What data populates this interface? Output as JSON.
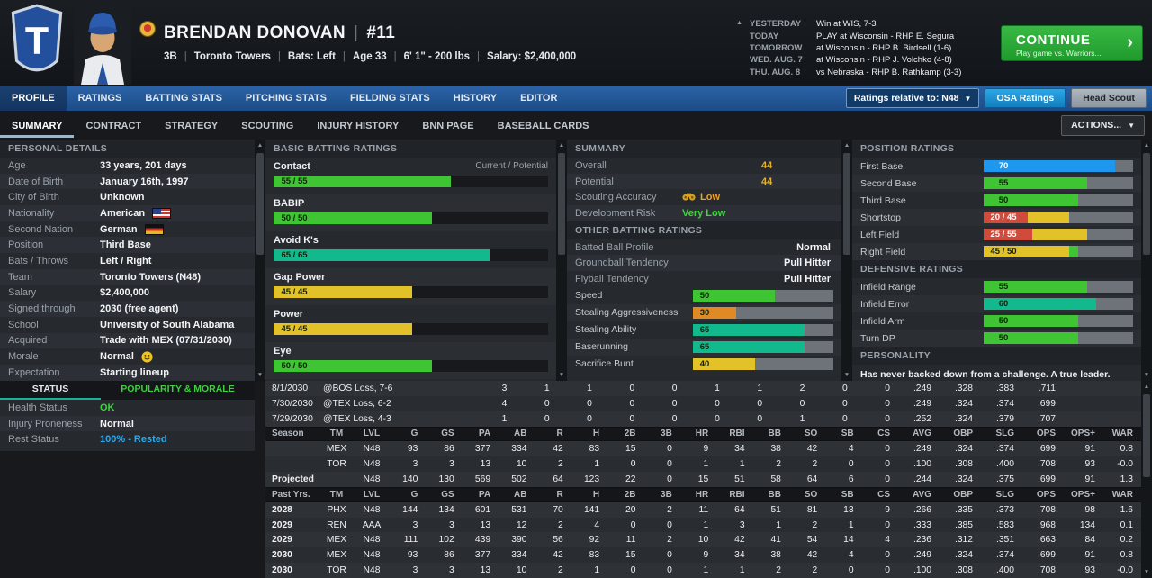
{
  "colors": {
    "red": "#d14b3c",
    "orange": "#e08a26",
    "yellow": "#e2c228",
    "green": "#3fc433",
    "teal": "#12b98c",
    "blue": "#1e97ef",
    "gold": "#e2b431"
  },
  "header": {
    "player_name": "BRENDAN DONOVAN",
    "jersey_number": "#11",
    "detail_segments": [
      "3B",
      "Toronto Towers",
      "Bats: Left",
      "Age 33",
      "6' 1\" - 200 lbs",
      "Salary: $2,400,000"
    ],
    "schedule": [
      {
        "label": "YESTERDAY",
        "value": "Win at WIS, 7-3"
      },
      {
        "label": "TODAY",
        "value": "PLAY at Wisconsin - RHP E. Segura"
      },
      {
        "label": "TOMORROW",
        "value": "at Wisconsin - RHP B. Birdsell (1-6)"
      },
      {
        "label": "WED. AUG. 7",
        "value": "at Wisconsin - RHP J. Volchko (4-8)"
      },
      {
        "label": "THU. AUG. 8",
        "value": "vs Nebraska - RHP B. Rathkamp (3-3)"
      }
    ],
    "continue_label": "CONTINUE",
    "continue_sub": "Play game vs. Warriors..."
  },
  "nav": {
    "tabs": [
      "PROFILE",
      "RATINGS",
      "BATTING STATS",
      "PITCHING STATS",
      "FIELDING STATS",
      "HISTORY",
      "EDITOR"
    ],
    "active_tab": "PROFILE",
    "ratings_relative": "Ratings relative to: N48",
    "osa_button": "OSA Ratings",
    "head_scout_button": "Head Scout"
  },
  "subnav": {
    "tabs": [
      "SUMMARY",
      "CONTRACT",
      "STRATEGY",
      "SCOUTING",
      "INJURY HISTORY",
      "BNN PAGE",
      "BASEBALL CARDS"
    ],
    "active_tab": "SUMMARY",
    "actions_button": "ACTIONS..."
  },
  "personal": {
    "title": "PERSONAL DETAILS",
    "rows": [
      {
        "label": "Age",
        "value": "33 years, 201 days"
      },
      {
        "label": "Date of Birth",
        "value": "January 16th, 1997"
      },
      {
        "label": "City of Birth",
        "value": "Unknown"
      },
      {
        "label": "Nationality",
        "value": "American",
        "flag": "us"
      },
      {
        "label": "Second Nation",
        "value": "German",
        "flag": "de"
      },
      {
        "label": "Position",
        "value": "Third Base"
      },
      {
        "label": "Bats / Throws",
        "value": "Left / Right"
      },
      {
        "label": "Team",
        "value": "Toronto Towers (N48)"
      },
      {
        "label": "Salary",
        "value": "$2,400,000"
      },
      {
        "label": "Signed through",
        "value": "2030 (free agent)"
      },
      {
        "label": "School",
        "value": "University of South Alabama"
      },
      {
        "label": "Acquired",
        "value": "Trade with MEX (07/31/2030)"
      },
      {
        "label": "Morale",
        "value": "Normal",
        "icon": "smiley"
      },
      {
        "label": "Expectation",
        "value": "Starting lineup"
      }
    ]
  },
  "status": {
    "tabs": [
      "STATUS",
      "POPULARITY & MORALE"
    ],
    "active_tab": "STATUS",
    "rows": [
      {
        "label": "Health Status",
        "value": "OK",
        "color": "#3ed43e"
      },
      {
        "label": "Injury Proneness",
        "value": "Normal"
      },
      {
        "label": "Rest Status",
        "value": "100% - Rested",
        "color": "#2fa8e8"
      }
    ]
  },
  "batting": {
    "title": "BASIC BATTING RATINGS",
    "scale_note": "Current / Potential",
    "ratings": [
      {
        "label": "Contact",
        "display": "55 / 55",
        "current": 55,
        "potential": 55,
        "color": "#3fc433"
      },
      {
        "label": "BABIP",
        "display": "50 / 50",
        "current": 50,
        "potential": 50,
        "color": "#3fc433"
      },
      {
        "label": "Avoid K's",
        "display": "65 / 65",
        "current": 65,
        "potential": 65,
        "color": "#12b98c"
      },
      {
        "label": "Gap Power",
        "display": "45 / 45",
        "current": 45,
        "potential": 45,
        "color": "#e2c228"
      },
      {
        "label": "Power",
        "display": "45 / 45",
        "current": 45,
        "potential": 45,
        "color": "#e2c228"
      },
      {
        "label": "Eye",
        "display": "50 / 50",
        "current": 50,
        "potential": 50,
        "color": "#3fc433"
      }
    ]
  },
  "summary": {
    "title": "SUMMARY",
    "rows": [
      {
        "label": "Overall",
        "value": "44",
        "variant": "num",
        "color": "#e2b431"
      },
      {
        "label": "Potential",
        "value": "44",
        "variant": "num",
        "color": "#e2b431"
      },
      {
        "label": "Scouting Accuracy",
        "value": "Low",
        "variant": "mid",
        "color": "#e8a22f",
        "icon": "binoculars"
      },
      {
        "label": "Development Risk",
        "value": "Very Low",
        "variant": "mid",
        "color": "#41d43f"
      }
    ],
    "other_title": "OTHER BATTING RATINGS",
    "profile_rows": [
      {
        "label": "Batted Ball Profile",
        "value": "Normal"
      },
      {
        "label": "Groundball Tendency",
        "value": "Pull Hitter"
      },
      {
        "label": "Flyball Tendency",
        "value": "Pull Hitter"
      }
    ],
    "run_ratings": [
      {
        "label": "Speed",
        "display": "50",
        "current": 50,
        "color": "#3fc433"
      },
      {
        "label": "Stealing Aggressiveness",
        "display": "30",
        "current": 30,
        "color": "#e08a26"
      },
      {
        "label": "Stealing Ability",
        "display": "65",
        "current": 65,
        "color": "#12b98c"
      },
      {
        "label": "Baserunning",
        "display": "65",
        "current": 65,
        "color": "#12b98c"
      },
      {
        "label": "Sacrifice Bunt",
        "display": "40",
        "current": 40,
        "color": "#e2c228"
      }
    ]
  },
  "positions": {
    "title": "POSITION RATINGS",
    "ratings": [
      {
        "label": "First Base",
        "display": "70",
        "current": 70,
        "color": "#1e97ef"
      },
      {
        "label": "Second Base",
        "display": "55",
        "current": 55,
        "color": "#3fc433"
      },
      {
        "label": "Third Base",
        "display": "50",
        "current": 50,
        "color": "#3fc433"
      },
      {
        "label": "Shortstop",
        "display": "20 / 45",
        "current": 20,
        "potential": 45,
        "color": "#d14b3c",
        "potential_color": "#e2c228"
      },
      {
        "label": "Left Field",
        "display": "25 / 55",
        "current": 25,
        "potential": 55,
        "color": "#d14b3c",
        "potential_color": "#e2c228"
      },
      {
        "label": "Right Field",
        "display": "45 / 50",
        "current": 45,
        "potential": 50,
        "color": "#e2c228",
        "potential_color": "#3fc433"
      }
    ],
    "defense_title": "DEFENSIVE RATINGS",
    "defense": [
      {
        "label": "Infield Range",
        "display": "55",
        "current": 55,
        "color": "#3fc433"
      },
      {
        "label": "Infield Error",
        "display": "60",
        "current": 60,
        "color": "#12b98c"
      },
      {
        "label": "Infield Arm",
        "display": "50",
        "current": 50,
        "color": "#3fc433"
      },
      {
        "label": "Turn DP",
        "display": "50",
        "current": 50,
        "color": "#3fc433"
      }
    ],
    "personality_title": "PERSONALITY",
    "personality_text": "Has never backed down from a challenge. A true leader."
  },
  "stats_table": {
    "columns": [
      "Season",
      "TM",
      "LVL",
      "G",
      "GS",
      "PA",
      "AB",
      "R",
      "H",
      "2B",
      "3B",
      "HR",
      "RBI",
      "BB",
      "SO",
      "SB",
      "CS",
      "AVG",
      "OBP",
      "SLG",
      "OPS",
      "OPS+",
      "WAR"
    ],
    "game_log": [
      {
        "date": "8/1/2030",
        "result": "@BOS Loss, 7-6",
        "values": [
          "3",
          "1",
          "1",
          "0",
          "0",
          "1",
          "1",
          "2",
          "0",
          "0",
          ".249",
          ".328",
          ".383",
          ".711"
        ]
      },
      {
        "date": "7/30/2030",
        "result": "@TEX Loss, 6-2",
        "values": [
          "4",
          "0",
          "0",
          "0",
          "0",
          "0",
          "0",
          "0",
          "0",
          "0",
          ".249",
          ".324",
          ".374",
          ".699"
        ]
      },
      {
        "date": "7/29/2030",
        "result": "@TEX Loss, 4-3",
        "values": [
          "1",
          "0",
          "0",
          "0",
          "0",
          "0",
          "0",
          "1",
          "0",
          "0",
          ".252",
          ".324",
          ".379",
          ".707"
        ]
      }
    ],
    "season_header_label": "Season",
    "season_rows": [
      [
        "",
        "MEX",
        "N48",
        "93",
        "86",
        "377",
        "334",
        "42",
        "83",
        "15",
        "0",
        "9",
        "34",
        "38",
        "42",
        "4",
        "0",
        ".249",
        ".324",
        ".374",
        ".699",
        "91",
        "0.8"
      ],
      [
        "",
        "TOR",
        "N48",
        "3",
        "3",
        "13",
        "10",
        "2",
        "1",
        "0",
        "0",
        "1",
        "1",
        "2",
        "2",
        "0",
        "0",
        ".100",
        ".308",
        ".400",
        ".708",
        "93",
        "-0.0"
      ],
      [
        "Projected",
        "",
        "N48",
        "140",
        "130",
        "569",
        "502",
        "64",
        "123",
        "22",
        "0",
        "15",
        "51",
        "58",
        "64",
        "6",
        "0",
        ".244",
        ".324",
        ".375",
        ".699",
        "91",
        "1.3"
      ]
    ],
    "past_header_label": "Past Yrs.",
    "past_rows": [
      [
        "2028",
        "PHX",
        "N48",
        "144",
        "134",
        "601",
        "531",
        "70",
        "141",
        "20",
        "2",
        "11",
        "64",
        "51",
        "81",
        "13",
        "9",
        ".266",
        ".335",
        ".373",
        ".708",
        "98",
        "1.6"
      ],
      [
        "2029",
        "REN",
        "AAA",
        "3",
        "3",
        "13",
        "12",
        "2",
        "4",
        "0",
        "0",
        "1",
        "3",
        "1",
        "2",
        "1",
        "0",
        ".333",
        ".385",
        ".583",
        ".968",
        "134",
        "0.1"
      ],
      [
        "2029",
        "MEX",
        "N48",
        "111",
        "102",
        "439",
        "390",
        "56",
        "92",
        "11",
        "2",
        "10",
        "42",
        "41",
        "54",
        "14",
        "4",
        ".236",
        ".312",
        ".351",
        ".663",
        "84",
        "0.2"
      ],
      [
        "2030",
        "MEX",
        "N48",
        "93",
        "86",
        "377",
        "334",
        "42",
        "83",
        "15",
        "0",
        "9",
        "34",
        "38",
        "42",
        "4",
        "0",
        ".249",
        ".324",
        ".374",
        ".699",
        "91",
        "0.8"
      ],
      [
        "2030",
        "TOR",
        "N48",
        "3",
        "3",
        "13",
        "10",
        "2",
        "1",
        "0",
        "0",
        "1",
        "1",
        "2",
        "2",
        "0",
        "0",
        ".100",
        ".308",
        ".400",
        ".708",
        "93",
        "-0.0"
      ]
    ]
  }
}
